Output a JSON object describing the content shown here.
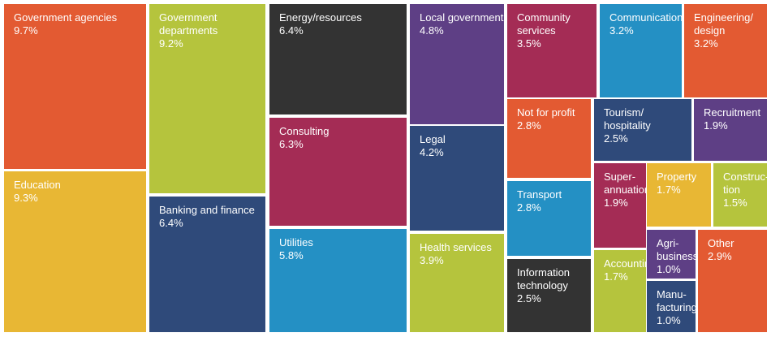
{
  "chart_data": {
    "type": "treemap",
    "unit": "%",
    "items": [
      {
        "lines": [
          "Government agencies"
        ],
        "label": "Government agencies",
        "value": 9.7,
        "value_label": "9.7%",
        "color": "#E35A32"
      },
      {
        "lines": [
          "Education"
        ],
        "label": "Education",
        "value": 9.3,
        "value_label": "9.3%",
        "color": "#E8B734"
      },
      {
        "lines": [
          "Government",
          "departments"
        ],
        "label": "Government departments",
        "value": 9.2,
        "value_label": "9.2%",
        "color": "#B5C43D"
      },
      {
        "lines": [
          "Banking and finance"
        ],
        "label": "Banking and finance",
        "value": 6.4,
        "value_label": "6.4%",
        "color": "#2F4A7A"
      },
      {
        "lines": [
          "Energy/resources"
        ],
        "label": "Energy/resources",
        "value": 6.4,
        "value_label": "6.4%",
        "color": "#333333"
      },
      {
        "lines": [
          "Consulting"
        ],
        "label": "Consulting",
        "value": 6.3,
        "value_label": "6.3%",
        "color": "#A42C55"
      },
      {
        "lines": [
          "Utilities"
        ],
        "label": "Utilities",
        "value": 5.8,
        "value_label": "5.8%",
        "color": "#2490C4"
      },
      {
        "lines": [
          "Local government"
        ],
        "label": "Local government",
        "value": 4.8,
        "value_label": "4.8%",
        "color": "#5E3F85"
      },
      {
        "lines": [
          "Legal"
        ],
        "label": "Legal",
        "value": 4.2,
        "value_label": "4.2%",
        "color": "#2F4A7A"
      },
      {
        "lines": [
          "Health services"
        ],
        "label": "Health services",
        "value": 3.9,
        "value_label": "3.9%",
        "color": "#B5C43D"
      },
      {
        "lines": [
          "Community",
          "services"
        ],
        "label": "Community services",
        "value": 3.5,
        "value_label": "3.5%",
        "color": "#A42C55"
      },
      {
        "lines": [
          "Communications"
        ],
        "label": "Communications",
        "value": 3.2,
        "value_label": "3.2%",
        "color": "#2490C4"
      },
      {
        "lines": [
          "Engineering/",
          "design"
        ],
        "label": "Engineering/design",
        "value": 3.2,
        "value_label": "3.2%",
        "color": "#E35A32"
      },
      {
        "lines": [
          "Not for profit"
        ],
        "label": "Not for profit",
        "value": 2.8,
        "value_label": "2.8%",
        "color": "#E35A32"
      },
      {
        "lines": [
          "Tourism/",
          "hospitality"
        ],
        "label": "Tourism/hospitality",
        "value": 2.5,
        "value_label": "2.5%",
        "color": "#2F4A7A"
      },
      {
        "lines": [
          "Recruitment"
        ],
        "label": "Recruitment",
        "value": 1.9,
        "value_label": "1.9%",
        "color": "#5E3F85"
      },
      {
        "lines": [
          "Transport"
        ],
        "label": "Transport",
        "value": 2.8,
        "value_label": "2.8%",
        "color": "#2490C4"
      },
      {
        "lines": [
          "Super-",
          "annuation"
        ],
        "label": "Super-annuation",
        "value": 1.9,
        "value_label": "1.9%",
        "color": "#A42C55"
      },
      {
        "lines": [
          "Property"
        ],
        "label": "Property",
        "value": 1.7,
        "value_label": "1.7%",
        "color": "#E8B734"
      },
      {
        "lines": [
          "Construc-",
          "tion"
        ],
        "label": "Construc-tion",
        "value": 1.5,
        "value_label": "1.5%",
        "color": "#B5C43D"
      },
      {
        "lines": [
          "Information",
          "technology"
        ],
        "label": "Information technology",
        "value": 2.5,
        "value_label": "2.5%",
        "color": "#333333"
      },
      {
        "lines": [
          "Accounting"
        ],
        "label": "Accounting",
        "value": 1.7,
        "value_label": "1.7%",
        "color": "#B5C43D"
      },
      {
        "lines": [
          "Agri-",
          "business"
        ],
        "label": "Agri-business",
        "value": 1.0,
        "value_label": "1.0%",
        "color": "#5E3F85"
      },
      {
        "lines": [
          "Manu-",
          "facturing"
        ],
        "label": "Manu-facturing",
        "value": 1.0,
        "value_label": "1.0%",
        "color": "#2F4A7A"
      },
      {
        "lines": [
          "Other"
        ],
        "label": "Other",
        "value": 2.9,
        "value_label": "2.9%",
        "color": "#E35A32"
      }
    ]
  }
}
